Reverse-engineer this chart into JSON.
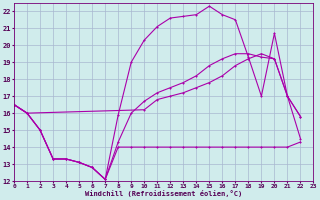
{
  "background_color": "#d0ecec",
  "grid_color": "#a8b8d0",
  "line_color": "#aa00aa",
  "xlabel": "Windchill (Refroidissement éolien,°C)",
  "xlim": [
    0,
    23
  ],
  "ylim": [
    12,
    22.5
  ],
  "yticks": [
    12,
    13,
    14,
    15,
    16,
    17,
    18,
    19,
    20,
    21,
    22
  ],
  "xticks": [
    0,
    1,
    2,
    3,
    4,
    5,
    6,
    7,
    8,
    9,
    10,
    11,
    12,
    13,
    14,
    15,
    16,
    17,
    18,
    19,
    20,
    21,
    22,
    23
  ],
  "line1_x": [
    0,
    1,
    2,
    3,
    4,
    5,
    6,
    7,
    8,
    9,
    10,
    11,
    12,
    13,
    14,
    15,
    16,
    17,
    18,
    19,
    20,
    21,
    22
  ],
  "line1_y": [
    16.5,
    16.0,
    15.0,
    13.3,
    13.3,
    13.1,
    12.8,
    12.1,
    14.0,
    14.0,
    14.0,
    14.0,
    14.0,
    14.0,
    14.0,
    14.0,
    14.0,
    14.0,
    14.0,
    14.0,
    14.0,
    14.0,
    14.3
  ],
  "line2_x": [
    0,
    1,
    2,
    3,
    4,
    5,
    6,
    7,
    8,
    9,
    10,
    11,
    12,
    13,
    14,
    15,
    16,
    17,
    18,
    19,
    20,
    21,
    22
  ],
  "line2_y": [
    16.5,
    16.0,
    15.0,
    13.3,
    13.3,
    13.1,
    12.8,
    12.1,
    15.9,
    19.0,
    20.3,
    21.1,
    21.6,
    21.7,
    21.8,
    22.3,
    21.8,
    21.5,
    19.3,
    17.0,
    20.7,
    17.0,
    14.5
  ],
  "line3_x": [
    0,
    1,
    2,
    3,
    4,
    5,
    6,
    7,
    8,
    9,
    10,
    11,
    12,
    13,
    14,
    15,
    16,
    17,
    18,
    19,
    20,
    21,
    22
  ],
  "line3_y": [
    16.5,
    16.0,
    15.0,
    13.3,
    13.3,
    13.1,
    12.8,
    12.1,
    14.3,
    16.0,
    16.7,
    17.2,
    17.5,
    17.8,
    18.2,
    18.8,
    19.2,
    19.5,
    19.5,
    19.3,
    19.2,
    17.0,
    15.8
  ],
  "line4_x": [
    0,
    1,
    10,
    11,
    12,
    13,
    14,
    15,
    16,
    17,
    18,
    19,
    20,
    21,
    22
  ],
  "line4_y": [
    16.5,
    16.0,
    16.2,
    16.8,
    17.0,
    17.2,
    17.5,
    17.8,
    18.2,
    18.8,
    19.2,
    19.5,
    19.2,
    17.0,
    15.8
  ]
}
